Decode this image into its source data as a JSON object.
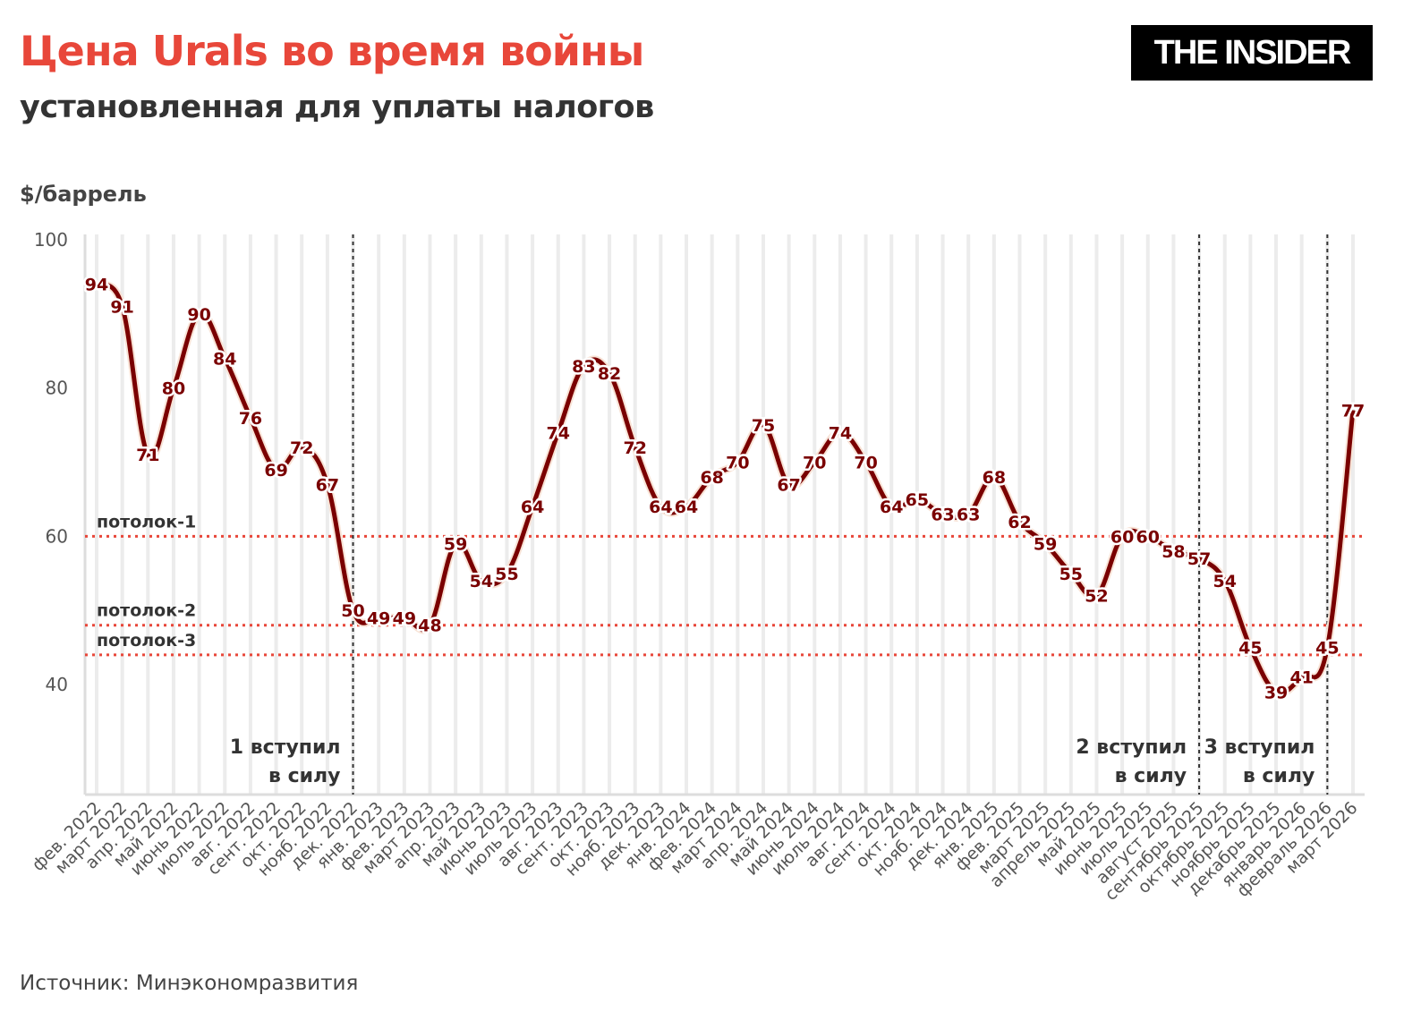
{
  "header": {
    "title": "Цена Urals во время войны",
    "subtitle": "установленная для уплаты налогов",
    "logo": "THE INSIDER"
  },
  "source": "Источник: Минэкономразвития",
  "chart_data": {
    "type": "line",
    "ylabel": "$/баррель",
    "ylim": [
      25,
      100
    ],
    "yticks": [
      40,
      60,
      80,
      100
    ],
    "grid": "vertical",
    "line_color": "#7a0000",
    "ceiling_color": "#e8473a",
    "categories": [
      "фев. 2022",
      "март 2022",
      "апр. 2022",
      "май 2022",
      "июнь 2022",
      "июль 2022",
      "авг. 2022",
      "сент. 2022",
      "окт. 2022",
      "нояб. 2022",
      "дек. 2022",
      "янв. 2023",
      "фев. 2023",
      "март 2023",
      "апр. 2023",
      "май 2023",
      "июнь 2023",
      "июль 2023",
      "авг. 2023",
      "сент. 2023",
      "окт. 2023",
      "нояб. 2023",
      "дек. 2023",
      "янв. 2024",
      "фев. 2024",
      "март 2024",
      "апр. 2024",
      "май 2024",
      "июнь 2024",
      "июль 2024",
      "авг. 2024",
      "сент. 2024",
      "окт. 2024",
      "нояб. 2024",
      "дек. 2024",
      "янв. 2025",
      "фев. 2025",
      "март 2025",
      "апрель 2025",
      "май 2025",
      "июнь 2025",
      "июль 2025",
      "август 2025",
      "сентябрь 2025",
      "октябрь 2025",
      "ноябрь 2025",
      "декабрь 2025",
      "январь 2026",
      "февраль 2026",
      "март 2026"
    ],
    "values": [
      94,
      91,
      71,
      80,
      90,
      84,
      76,
      69,
      72,
      67,
      50,
      49,
      49,
      48,
      59,
      54,
      55,
      64,
      74,
      83,
      82,
      72,
      64,
      64,
      68,
      70,
      75,
      67,
      70,
      74,
      70,
      64,
      65,
      63,
      63,
      68,
      62,
      59,
      55,
      52,
      60,
      60,
      58,
      57,
      54,
      45,
      39,
      41,
      45,
      77
    ],
    "ceilings": [
      {
        "label": "потолок-1",
        "value": 60
      },
      {
        "label": "потолок-2",
        "value": 48
      },
      {
        "label": "потолок-3",
        "value": 44
      }
    ],
    "events": [
      {
        "category": "дек. 2022",
        "line1": "1 вступил",
        "line2": "в силу"
      },
      {
        "category": "сентябрь 2025",
        "line1": "2 вступил",
        "line2": "в силу"
      },
      {
        "category": "февраль 2026",
        "line1": "3 вступил",
        "line2": "в силу"
      }
    ]
  }
}
